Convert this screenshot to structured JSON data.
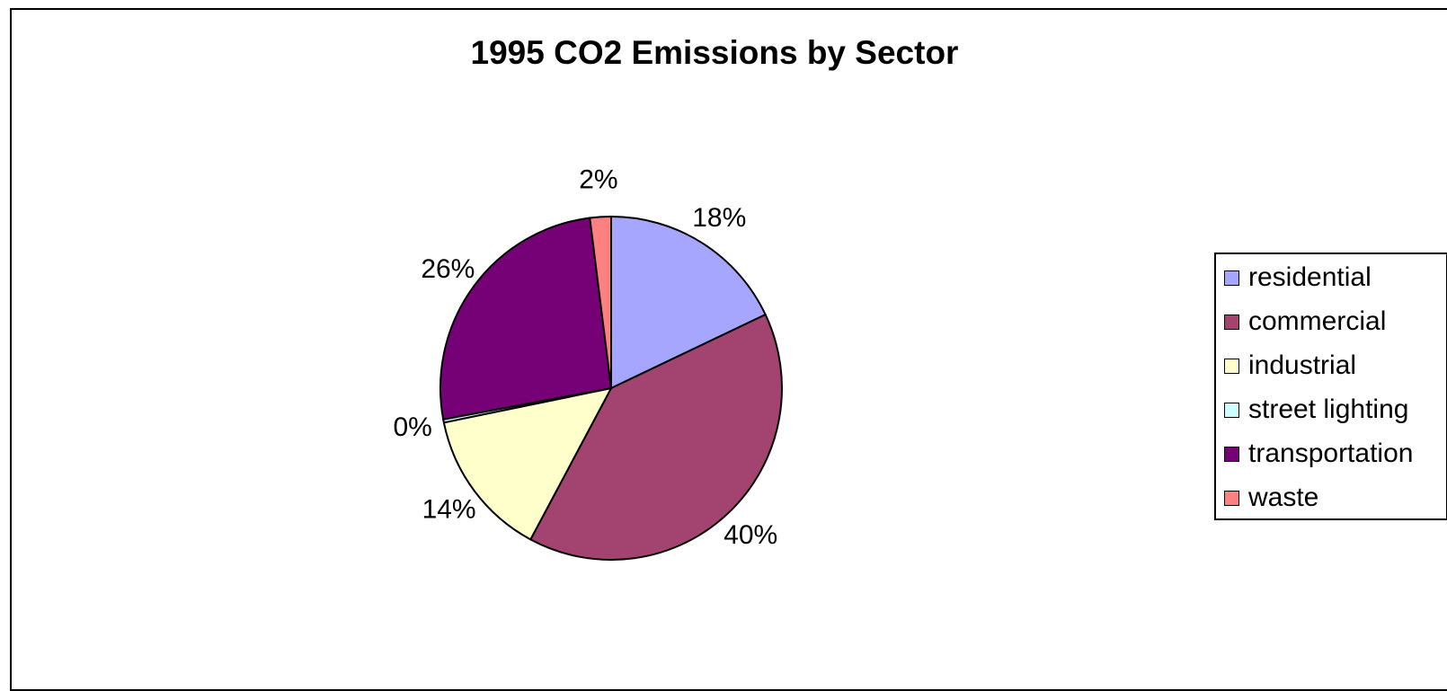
{
  "chart_data": {
    "type": "pie",
    "title": "1995 CO2 Emissions by Sector",
    "slices": [
      {
        "label": "residential",
        "value": 18,
        "display": "18%",
        "color": "#a6a6ff"
      },
      {
        "label": "commercial",
        "value": 40,
        "display": "40%",
        "color": "#a34470"
      },
      {
        "label": "industrial",
        "value": 14,
        "display": "14%",
        "color": "#ffffcc"
      },
      {
        "label": "street lighting",
        "value": 0.3,
        "display": "0%",
        "color": "#ccffff"
      },
      {
        "label": "transportation",
        "value": 26,
        "display": "26%",
        "color": "#760076"
      },
      {
        "label": "waste",
        "value": 2,
        "display": "2%",
        "color": "#ff8080"
      }
    ],
    "legend_position": "right"
  }
}
